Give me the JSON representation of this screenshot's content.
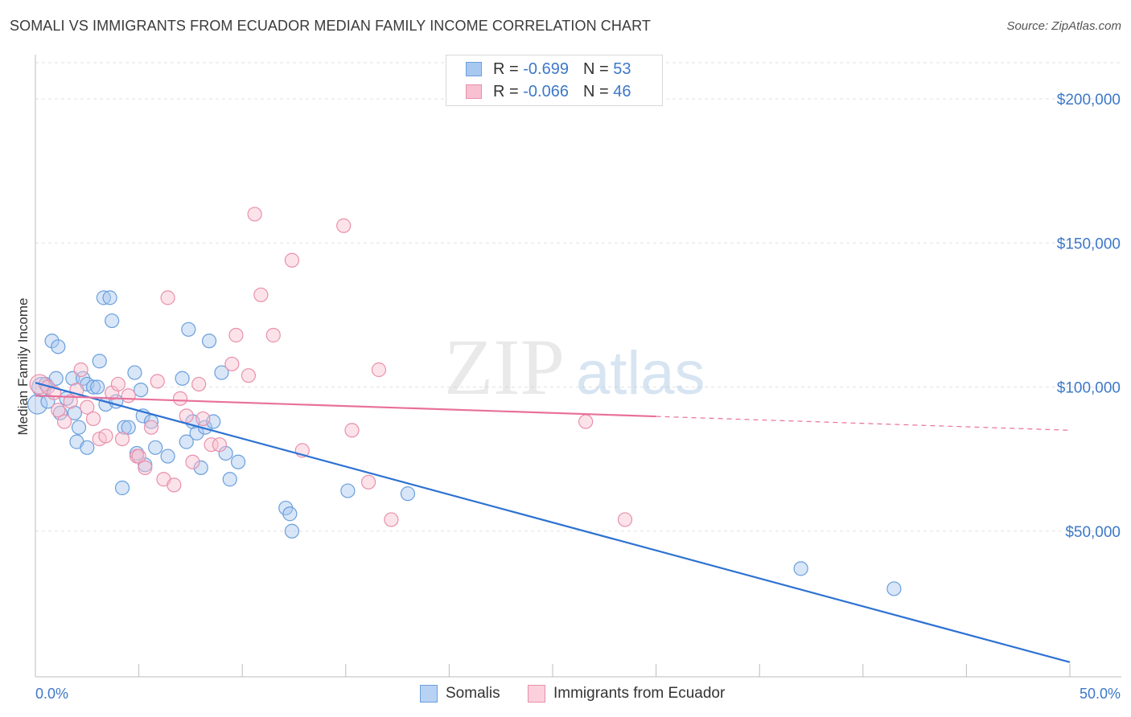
{
  "header": {
    "title": "SOMALI VS IMMIGRANTS FROM ECUADOR MEDIAN FAMILY INCOME CORRELATION CHART",
    "source": "Source: ZipAtlas.com"
  },
  "watermark": {
    "zip": "ZIP",
    "atlas": "atlas"
  },
  "legend": {
    "r_label": "R =",
    "n_label": "N =",
    "rows": [
      {
        "r": "-0.699",
        "n": "53",
        "color": "#a8c8f0",
        "border": "#6a9fdc"
      },
      {
        "r": "-0.066",
        "n": "46",
        "color": "#f8c0d0",
        "border": "#e890ac"
      }
    ]
  },
  "chart_data": {
    "type": "scatter",
    "title": "SOMALI VS IMMIGRANTS FROM ECUADOR MEDIAN FAMILY INCOME CORRELATION CHART",
    "xlabel": "",
    "ylabel": "Median Family Income",
    "xlim": [
      0,
      50
    ],
    "ylim": [
      0,
      212000
    ],
    "x_tick_labels": [
      "0.0%",
      "50.0%"
    ],
    "y_ticks": [
      50000,
      100000,
      150000,
      200000
    ],
    "y_tick_labels": [
      "$50,000",
      "$100,000",
      "$150,000",
      "$200,000"
    ],
    "grid": "horizontal dashed",
    "legend_position": "top-center",
    "series": [
      {
        "name": "Somalis",
        "color": "#6a9fdc",
        "fill": "#a8c8f0",
        "line_color": "#2d72d2",
        "trend": {
          "x0": 0,
          "y0": 101500,
          "x1": 50,
          "y1": 4500,
          "dashed_from": null
        },
        "points": [
          [
            0.1,
            94000
          ],
          [
            0.3,
            100000
          ],
          [
            0.5,
            101000
          ],
          [
            0.6,
            95000
          ],
          [
            0.8,
            116000
          ],
          [
            1.0,
            103000
          ],
          [
            1.1,
            114000
          ],
          [
            1.2,
            91000
          ],
          [
            1.5,
            96000
          ],
          [
            1.8,
            103000
          ],
          [
            1.9,
            91000
          ],
          [
            2.0,
            81000
          ],
          [
            2.1,
            86000
          ],
          [
            2.3,
            103000
          ],
          [
            2.5,
            101000
          ],
          [
            2.5,
            79000
          ],
          [
            2.8,
            100000
          ],
          [
            3.0,
            100000
          ],
          [
            3.1,
            109000
          ],
          [
            3.3,
            131000
          ],
          [
            3.4,
            94000
          ],
          [
            3.6,
            131000
          ],
          [
            3.7,
            123000
          ],
          [
            3.9,
            95000
          ],
          [
            4.2,
            65000
          ],
          [
            4.3,
            86000
          ],
          [
            4.5,
            86000
          ],
          [
            4.8,
            105000
          ],
          [
            4.9,
            77000
          ],
          [
            5.1,
            99000
          ],
          [
            5.2,
            90000
          ],
          [
            5.3,
            73000
          ],
          [
            5.6,
            88000
          ],
          [
            5.8,
            79000
          ],
          [
            6.4,
            76000
          ],
          [
            7.1,
            103000
          ],
          [
            7.3,
            81000
          ],
          [
            7.4,
            120000
          ],
          [
            7.6,
            88000
          ],
          [
            7.8,
            84000
          ],
          [
            8.0,
            72000
          ],
          [
            8.2,
            86000
          ],
          [
            8.4,
            116000
          ],
          [
            8.6,
            88000
          ],
          [
            9.0,
            105000
          ],
          [
            9.2,
            77000
          ],
          [
            9.4,
            68000
          ],
          [
            9.8,
            74000
          ],
          [
            12.1,
            58000
          ],
          [
            12.3,
            56000
          ],
          [
            12.4,
            50000
          ],
          [
            15.1,
            64000
          ],
          [
            18.0,
            63000
          ],
          [
            37.0,
            37000
          ],
          [
            41.5,
            30000
          ]
        ]
      },
      {
        "name": "Immigrants from Ecuador",
        "color": "#e890ac",
        "fill": "#f8c0d0",
        "line_color": "#e8709a",
        "trend": {
          "x0": 0,
          "y0": 97000,
          "x1": 50,
          "y1": 85000,
          "dashed_from": 30
        },
        "points": [
          [
            0.2,
            101000
          ],
          [
            0.6,
            100000
          ],
          [
            0.9,
            98000
          ],
          [
            1.1,
            92000
          ],
          [
            1.4,
            88000
          ],
          [
            1.7,
            95000
          ],
          [
            2.0,
            99000
          ],
          [
            2.2,
            106000
          ],
          [
            2.5,
            93000
          ],
          [
            2.8,
            89000
          ],
          [
            3.1,
            82000
          ],
          [
            3.4,
            83000
          ],
          [
            3.7,
            98000
          ],
          [
            4.0,
            101000
          ],
          [
            4.2,
            82000
          ],
          [
            4.5,
            97000
          ],
          [
            4.9,
            76000
          ],
          [
            5.0,
            76000
          ],
          [
            5.3,
            72000
          ],
          [
            5.6,
            86000
          ],
          [
            5.9,
            102000
          ],
          [
            6.2,
            68000
          ],
          [
            6.4,
            131000
          ],
          [
            6.7,
            66000
          ],
          [
            7.0,
            96000
          ],
          [
            7.3,
            90000
          ],
          [
            7.6,
            74000
          ],
          [
            7.9,
            101000
          ],
          [
            8.1,
            89000
          ],
          [
            8.5,
            80000
          ],
          [
            8.9,
            80000
          ],
          [
            9.5,
            108000
          ],
          [
            9.7,
            118000
          ],
          [
            10.3,
            104000
          ],
          [
            10.6,
            160000
          ],
          [
            10.9,
            132000
          ],
          [
            11.5,
            118000
          ],
          [
            12.4,
            144000
          ],
          [
            12.9,
            78000
          ],
          [
            14.9,
            156000
          ],
          [
            15.3,
            85000
          ],
          [
            16.1,
            67000
          ],
          [
            16.6,
            106000
          ],
          [
            17.2,
            54000
          ],
          [
            26.6,
            88000
          ],
          [
            28.5,
            54000
          ]
        ]
      }
    ]
  }
}
